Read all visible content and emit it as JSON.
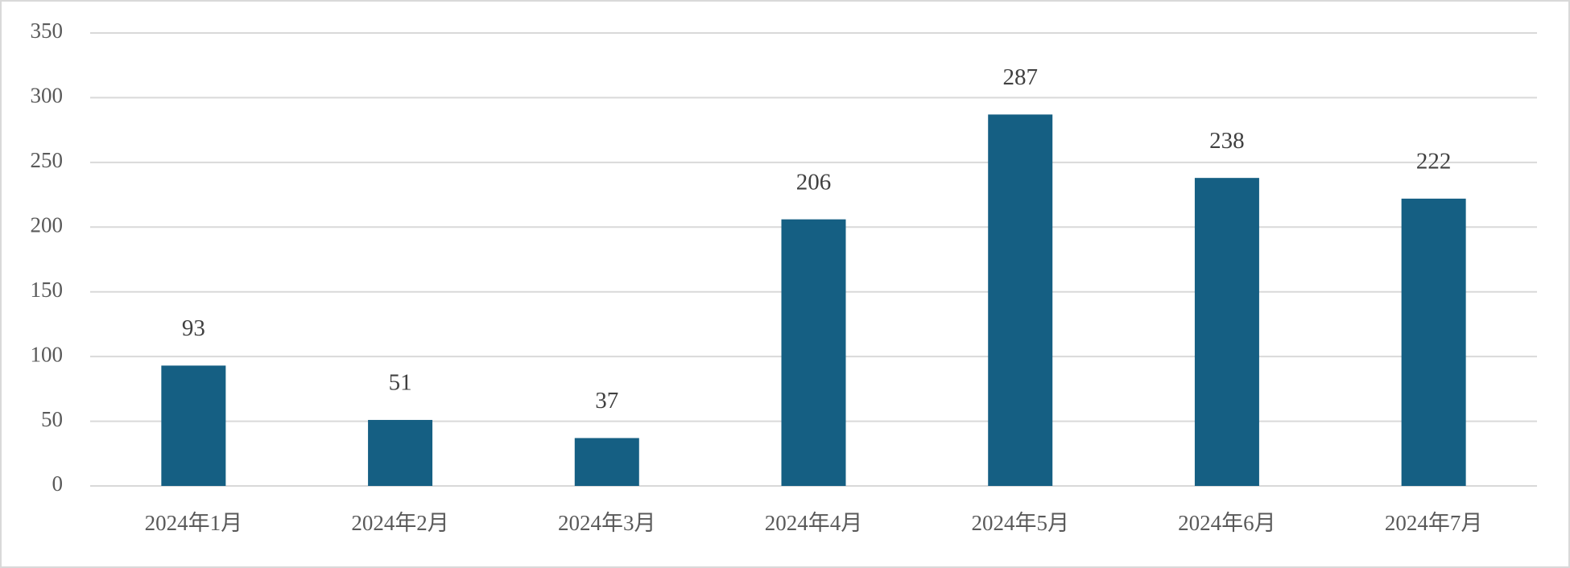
{
  "chart_data": {
    "type": "bar",
    "categories": [
      "2024年1月",
      "2024年2月",
      "2024年3月",
      "2024年4月",
      "2024年5月",
      "2024年6月",
      "2024年7月"
    ],
    "values": [
      93,
      51,
      37,
      206,
      287,
      238,
      222
    ],
    "color": "#155f83",
    "ylim": [
      0,
      350
    ],
    "yticks": [
      0,
      50,
      100,
      150,
      200,
      250,
      300,
      350
    ],
    "grid": true
  }
}
